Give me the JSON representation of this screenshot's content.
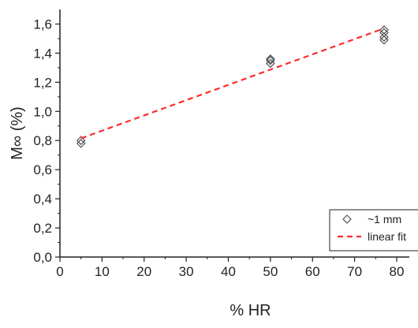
{
  "chart_data": {
    "type": "scatter",
    "title": "",
    "xlabel": "% HR",
    "ylabel": "M∞ (%)",
    "xlim": [
      0,
      83
    ],
    "ylim": [
      0,
      1.7
    ],
    "x_ticks": [
      0,
      10,
      20,
      30,
      40,
      50,
      60,
      70,
      80
    ],
    "x_tick_labels": [
      "0",
      "10",
      "20",
      "30",
      "40",
      "50",
      "60",
      "70",
      "80"
    ],
    "y_ticks": [
      0,
      0.2,
      0.4,
      0.6,
      0.8,
      1.0,
      1.2,
      1.4,
      1.6
    ],
    "y_tick_labels": [
      "0,0",
      "0,2",
      "0,4",
      "0,6",
      "0,8",
      "1,0",
      "1,2",
      "1,4",
      "1,6"
    ],
    "grid": false,
    "legend_position": "bottom-right",
    "series": [
      {
        "name": "~1 mm",
        "kind": "scatter",
        "marker": "diamond-open",
        "color": "#555555",
        "points": [
          {
            "x": 5,
            "y": 0.8
          },
          {
            "x": 5,
            "y": 0.78
          },
          {
            "x": 50,
            "y": 1.36
          },
          {
            "x": 50,
            "y": 1.35
          },
          {
            "x": 50,
            "y": 1.33
          },
          {
            "x": 77,
            "y": 1.56
          },
          {
            "x": 77,
            "y": 1.54
          },
          {
            "x": 77,
            "y": 1.51
          },
          {
            "x": 77,
            "y": 1.49
          }
        ]
      },
      {
        "name": "linear fit",
        "kind": "line",
        "style": "dashed",
        "color": "#ff2a2a",
        "points": [
          {
            "x": 5,
            "y": 0.815
          },
          {
            "x": 77,
            "y": 1.57
          }
        ]
      }
    ]
  }
}
